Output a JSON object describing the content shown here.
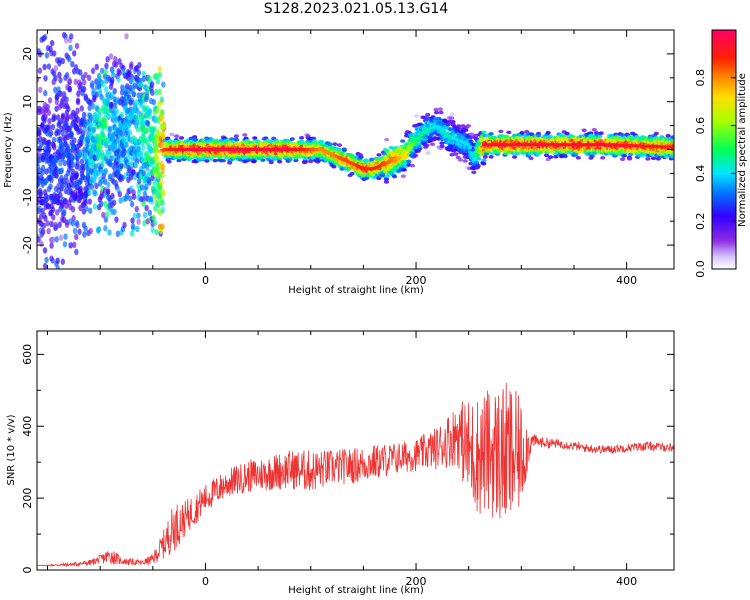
{
  "figure": {
    "title": "S128.2023.021.05.13.G14"
  },
  "chart_data": [
    {
      "type": "heatmap",
      "title": "S128.2023.021.05.13.G14",
      "xlabel": "Height of straight line (km)",
      "ylabel": "Frequency (Hz)",
      "xlim": [
        -160,
        445
      ],
      "ylim": [
        -25,
        25
      ],
      "xticks": [
        0,
        200,
        400
      ],
      "yticks": [
        -20,
        -10,
        0,
        10,
        20
      ],
      "colorbar": {
        "label": "Normalized spectral amplitude",
        "range": [
          0,
          1
        ],
        "ticks": [
          "0.0",
          "0.2",
          "0.4",
          "0.6",
          "0.8"
        ],
        "colormap": "rainbow (violet-blue-cyan-green-yellow-orange-red-magenta)"
      },
      "ridge": {
        "x": [
          -160,
          -120,
          -100,
          -95,
          -90,
          -80,
          -70,
          -60,
          -50,
          -40,
          -20,
          0,
          40,
          80,
          110,
          120,
          130,
          140,
          150,
          160,
          170,
          180,
          190,
          200,
          210,
          220,
          230,
          240,
          250,
          255,
          260,
          265,
          270,
          300,
          340,
          380,
          445
        ],
        "frequency_hz": [
          -4,
          -1,
          3,
          6,
          2,
          5,
          4,
          4,
          -1,
          0,
          0,
          0,
          0,
          0,
          0,
          -1,
          -2,
          -3,
          -4,
          -4,
          -3,
          -2,
          -1,
          2,
          4,
          5,
          3,
          2,
          1,
          -2,
          0,
          1,
          1,
          1,
          1,
          1,
          0.5
        ],
        "peak_amplitude": [
          0.3,
          0.3,
          0.5,
          0.5,
          0.4,
          0.4,
          0.4,
          0.5,
          0.5,
          0.85,
          0.95,
          0.95,
          0.95,
          0.95,
          0.8,
          0.8,
          0.85,
          0.85,
          0.9,
          0.9,
          0.85,
          0.8,
          0.7,
          0.5,
          0.45,
          0.4,
          0.45,
          0.4,
          0.4,
          0.4,
          0.6,
          0.95,
          0.95,
          0.95,
          0.95,
          0.95,
          0.9
        ]
      },
      "grid": false
    },
    {
      "type": "line",
      "xlabel": "Height of straight line (km)",
      "ylabel": "SNR (10 * v/v)",
      "xlim": [
        -160,
        445
      ],
      "ylim": [
        0,
        665
      ],
      "xticks": [
        0,
        200,
        400
      ],
      "yticks": [
        0,
        200,
        400,
        600
      ],
      "color": "#ee3333",
      "series": [
        {
          "x": [
            -160,
            -130,
            -110,
            -100,
            -90,
            -80,
            -60,
            -50,
            -40,
            -30,
            -20,
            -10,
            0,
            20,
            40,
            60,
            80,
            100,
            120,
            140,
            160,
            180,
            200,
            220,
            240,
            250,
            260,
            270,
            280,
            290,
            300,
            310,
            320,
            340,
            360,
            380,
            400,
            420,
            445
          ],
          "y": [
            12,
            15,
            20,
            30,
            40,
            25,
            20,
            30,
            70,
            120,
            140,
            170,
            200,
            240,
            260,
            270,
            280,
            275,
            285,
            290,
            300,
            310,
            320,
            340,
            380,
            330,
            320,
            330,
            320,
            315,
            320,
            360,
            355,
            350,
            340,
            335,
            340,
            345,
            340
          ],
          "envelope": [
            0,
            5,
            8,
            12,
            25,
            10,
            8,
            15,
            40,
            70,
            50,
            45,
            40,
            40,
            45,
            50,
            55,
            60,
            50,
            50,
            50,
            45,
            45,
            60,
            90,
            150,
            170,
            180,
            200,
            210,
            150,
            20,
            15,
            12,
            12,
            12,
            12,
            12,
            12
          ]
        }
      ],
      "grid": false
    }
  ]
}
